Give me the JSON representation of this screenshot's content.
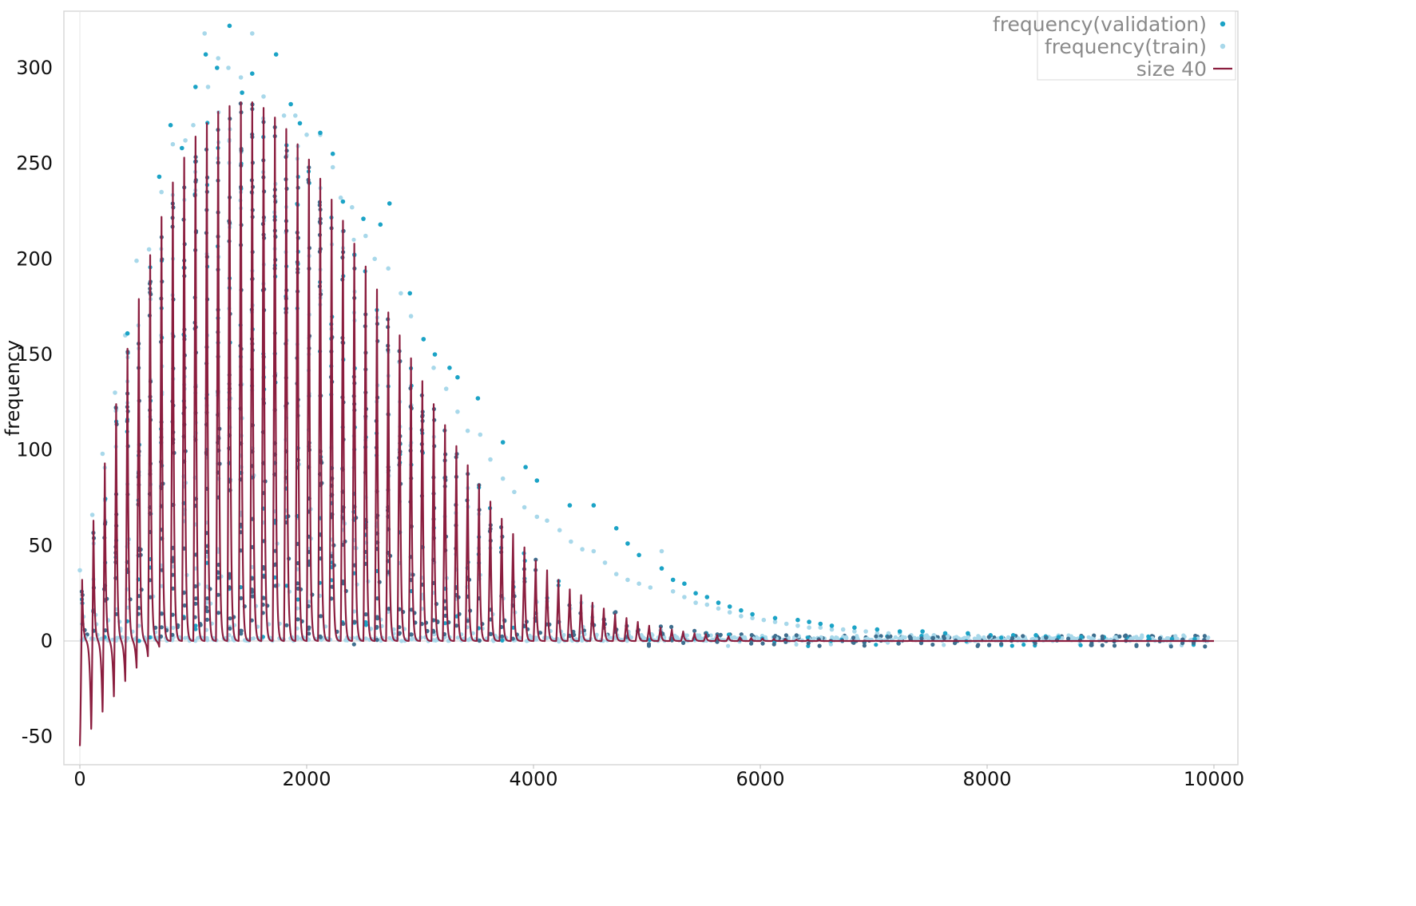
{
  "chart_data": {
    "type": "scatter",
    "ylabel": "frequency",
    "xlabel": "",
    "xlim": [
      -150,
      10200
    ],
    "ylim": [
      -57,
      327
    ],
    "x_ticks": [
      0,
      2000,
      4000,
      6000,
      8000,
      10000
    ],
    "x_tick_labels": [
      "0",
      "2000",
      "4000",
      "6000",
      "8000",
      "10000"
    ],
    "y_ticks": [
      -50,
      0,
      50,
      100,
      150,
      200,
      250,
      300
    ],
    "y_tick_labels": [
      "-50",
      "0",
      "50",
      "100",
      "150",
      "200",
      "250",
      "300"
    ],
    "grid": false,
    "legend_position": "top-right",
    "colors": {
      "validation": "#1ba3c6",
      "train": "#a8d8ea",
      "overlap": "#3e6e8e",
      "line": "#8b1e3f",
      "frame": "#d8d8d8"
    },
    "legend": [
      {
        "label": "frequency(validation)",
        "marker": "dot",
        "color": "#1ba3c6"
      },
      {
        "label": "frequency(train)",
        "marker": "dot",
        "color": "#a8d8ea"
      },
      {
        "label": "size 40",
        "marker": "line",
        "color": "#8b1e3f"
      }
    ],
    "series": [
      {
        "name": "size 40",
        "kind": "line",
        "period": 100,
        "domain": [
          0,
          10000
        ],
        "peak_x": [
          20,
          120,
          220,
          320,
          420,
          520,
          620,
          720,
          820,
          920,
          1020,
          1120,
          1220,
          1320,
          1420,
          1520,
          1620,
          1720,
          1820,
          1920,
          2020,
          2120,
          2220,
          2320,
          2420,
          2520,
          2620,
          2720,
          2820,
          2920,
          3020,
          3120,
          3220,
          3320,
          3420,
          3520,
          3620,
          3720,
          3820,
          3920,
          4020,
          4120,
          4220,
          4320,
          4420,
          4520,
          4620,
          4720,
          4820,
          4920,
          5020,
          5120,
          5220,
          5320,
          5420,
          5520,
          5620,
          5720,
          5820,
          5920,
          6020,
          6120,
          6220,
          6320,
          6420,
          6520,
          6620,
          6720,
          6820,
          6920,
          7020,
          7120,
          7220,
          7320,
          7420,
          7520,
          7620,
          7720,
          7820,
          7920,
          8020,
          8120,
          8220,
          8320,
          8420,
          8520,
          8620,
          8720,
          8820,
          8920,
          9020,
          9120,
          9220,
          9320,
          9420,
          9520,
          9620,
          9720,
          9820,
          9920
        ],
        "peak_y": [
          32,
          63,
          93,
          124,
          153,
          179,
          202,
          222,
          240,
          253,
          264,
          271,
          277,
          280,
          282,
          282,
          279,
          274,
          268,
          260,
          252,
          242,
          231,
          220,
          208,
          196,
          184,
          172,
          160,
          148,
          136,
          124,
          113,
          102,
          92,
          82,
          73,
          64,
          56,
          49,
          42,
          37,
          32,
          27,
          24,
          20,
          17,
          14,
          12,
          10,
          8,
          7,
          6,
          5,
          4,
          3.5,
          3,
          2.5,
          2,
          1.6,
          1.3,
          1.1,
          0.9,
          0.7,
          0.6,
          0.5,
          0.4,
          0.3,
          0.25,
          0.2,
          0.15,
          0.12,
          0.1,
          0.08,
          0.06,
          0.05,
          0.04,
          0.03,
          0.03,
          0.02,
          0.02,
          0.02,
          0.01,
          0.01,
          0.01,
          0.01,
          0.01,
          0.01,
          0.01,
          0.01,
          0.01,
          0.01,
          0.01,
          0.01,
          0.01,
          0.01,
          0.01,
          0.01,
          0.01,
          0.01
        ],
        "trough_y": [
          -55,
          -46,
          -37,
          -29,
          -21,
          -14,
          -8,
          -3,
          0,
          0,
          0,
          0,
          0,
          0,
          0,
          0,
          0,
          0,
          0,
          0,
          0,
          0,
          0,
          0,
          0,
          0,
          0,
          0,
          0,
          0,
          0,
          0,
          0,
          0,
          0,
          0,
          0,
          0,
          0,
          0,
          0,
          0,
          0,
          0,
          0,
          0,
          0,
          0,
          0,
          0,
          0,
          0,
          0,
          0,
          0,
          0,
          0,
          0,
          0,
          0,
          0,
          0,
          0,
          0,
          0,
          0,
          0,
          0,
          0,
          0,
          0,
          0,
          0,
          0,
          0,
          0,
          0,
          0,
          0,
          0,
          0,
          0,
          0,
          0,
          0,
          0,
          0,
          0,
          0,
          0,
          0,
          0,
          0,
          0,
          0,
          0,
          0,
          0,
          0,
          0
        ]
      },
      {
        "name": "frequency(train)",
        "kind": "scatter",
        "note_points": "dense points along each peak plus near-zero baseline points",
        "outlier_x": [
          0,
          110,
          200,
          310,
          400,
          500,
          610,
          720,
          820,
          930,
          1000,
          1100,
          1130,
          1220,
          1310,
          1420,
          1520,
          1620,
          1800,
          1900,
          2000,
          2120,
          2230,
          2300,
          2400,
          2520,
          2600,
          2720,
          2830,
          2920,
          3030,
          3120,
          3230,
          3330,
          3420,
          3530,
          3620,
          3730,
          3830,
          3920,
          4030,
          4120,
          4230,
          4330,
          4430,
          4530,
          4630,
          4730,
          4830,
          4930,
          5030,
          5130,
          5230,
          5330,
          5430,
          5530,
          5630,
          5730,
          5830,
          5930,
          6030,
          6130,
          6230,
          6330,
          6430,
          6530,
          6630,
          6730,
          6830,
          6930,
          7030,
          7130,
          7230,
          7330,
          7430,
          7530,
          7630,
          7730,
          7830,
          7930,
          8030,
          8130,
          8230,
          8330,
          8430,
          8530,
          8630,
          8730,
          8830,
          8930,
          9030,
          9130,
          9230,
          9330,
          9430,
          9530,
          9630,
          9730,
          9830,
          9930
        ],
        "outlier_y": [
          37,
          66,
          98,
          130,
          160,
          199,
          205,
          235,
          260,
          262,
          270,
          318,
          290,
          305,
          300,
          295,
          318,
          285,
          275,
          275,
          265,
          265,
          248,
          232,
          227,
          212,
          200,
          195,
          182,
          170,
          158,
          143,
          132,
          120,
          110,
          108,
          95,
          85,
          78,
          70,
          65,
          63,
          58,
          52,
          48,
          47,
          41,
          35,
          32,
          30,
          28,
          47,
          26,
          23,
          20,
          19,
          17,
          15,
          13,
          12,
          11,
          10,
          9,
          8,
          7,
          7,
          6,
          6,
          5,
          5,
          4,
          4,
          4,
          3,
          3,
          3,
          3,
          2,
          2,
          2,
          2,
          2,
          2,
          2,
          1,
          1,
          1,
          1,
          1,
          1,
          1,
          1,
          1,
          1,
          1,
          1,
          1,
          1,
          1,
          1
        ]
      },
      {
        "name": "frequency(validation)",
        "kind": "scatter",
        "outlier_x": [
          420,
          700,
          800,
          900,
          1020,
          1110,
          1210,
          1320,
          1430,
          1520,
          1730,
          1860,
          1940,
          2120,
          2230,
          2320,
          2500,
          2650,
          2730,
          2910,
          3030,
          3130,
          3260,
          3330,
          3510,
          3730,
          3930,
          4030,
          4320,
          4530,
          4730,
          4830,
          4930,
          5130,
          5230,
          5330,
          5430,
          5530,
          5630,
          5730,
          5830,
          5930,
          6130,
          6330,
          6430,
          6530,
          6630,
          6830,
          7030,
          7230,
          7430,
          7630,
          7830,
          8030,
          8230,
          8430,
          8630,
          8830,
          9030,
          9230,
          9430,
          9630,
          9830
        ],
        "outlier_y": [
          161,
          243,
          270,
          258,
          290,
          307,
          300,
          322,
          287,
          297,
          307,
          281,
          271,
          266,
          255,
          230,
          221,
          218,
          229,
          182,
          158,
          150,
          143,
          138,
          127,
          104,
          91,
          84,
          71,
          71,
          59,
          51,
          45,
          38,
          32,
          30,
          25,
          23,
          20,
          18,
          16,
          14,
          12,
          11,
          10,
          9,
          8,
          7,
          6,
          5,
          5,
          4,
          4,
          3,
          3,
          3,
          2,
          2,
          2,
          2,
          1,
          1,
          1
        ]
      }
    ]
  }
}
